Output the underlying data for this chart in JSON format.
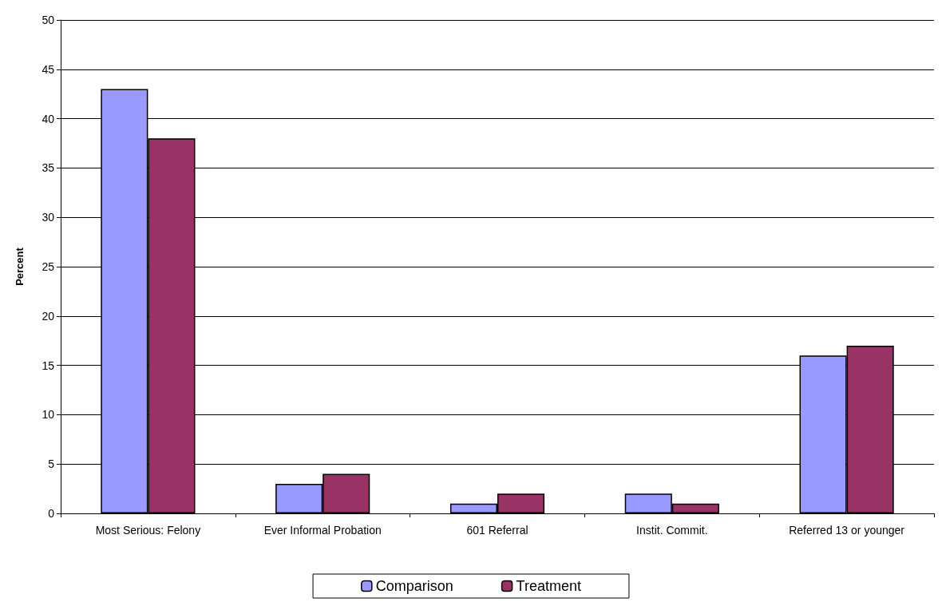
{
  "chart_data": {
    "type": "bar",
    "ylabel": "Percent",
    "categories": [
      "Most Serious: Felony",
      "Ever Informal Probation",
      "601 Referral",
      "Instit. Commit.",
      "Referred 13 or younger"
    ],
    "series": [
      {
        "name": "Comparison",
        "color": "#9999ff",
        "values": [
          43,
          3,
          1,
          2,
          16
        ]
      },
      {
        "name": "Treatment",
        "color": "#993366",
        "values": [
          38,
          4,
          2,
          1,
          17
        ]
      }
    ],
    "ylim": [
      0,
      50
    ],
    "yticks": [
      0,
      5,
      10,
      15,
      20,
      25,
      30,
      35,
      40,
      45,
      50
    ],
    "grid": "y",
    "legend": "bottom"
  }
}
